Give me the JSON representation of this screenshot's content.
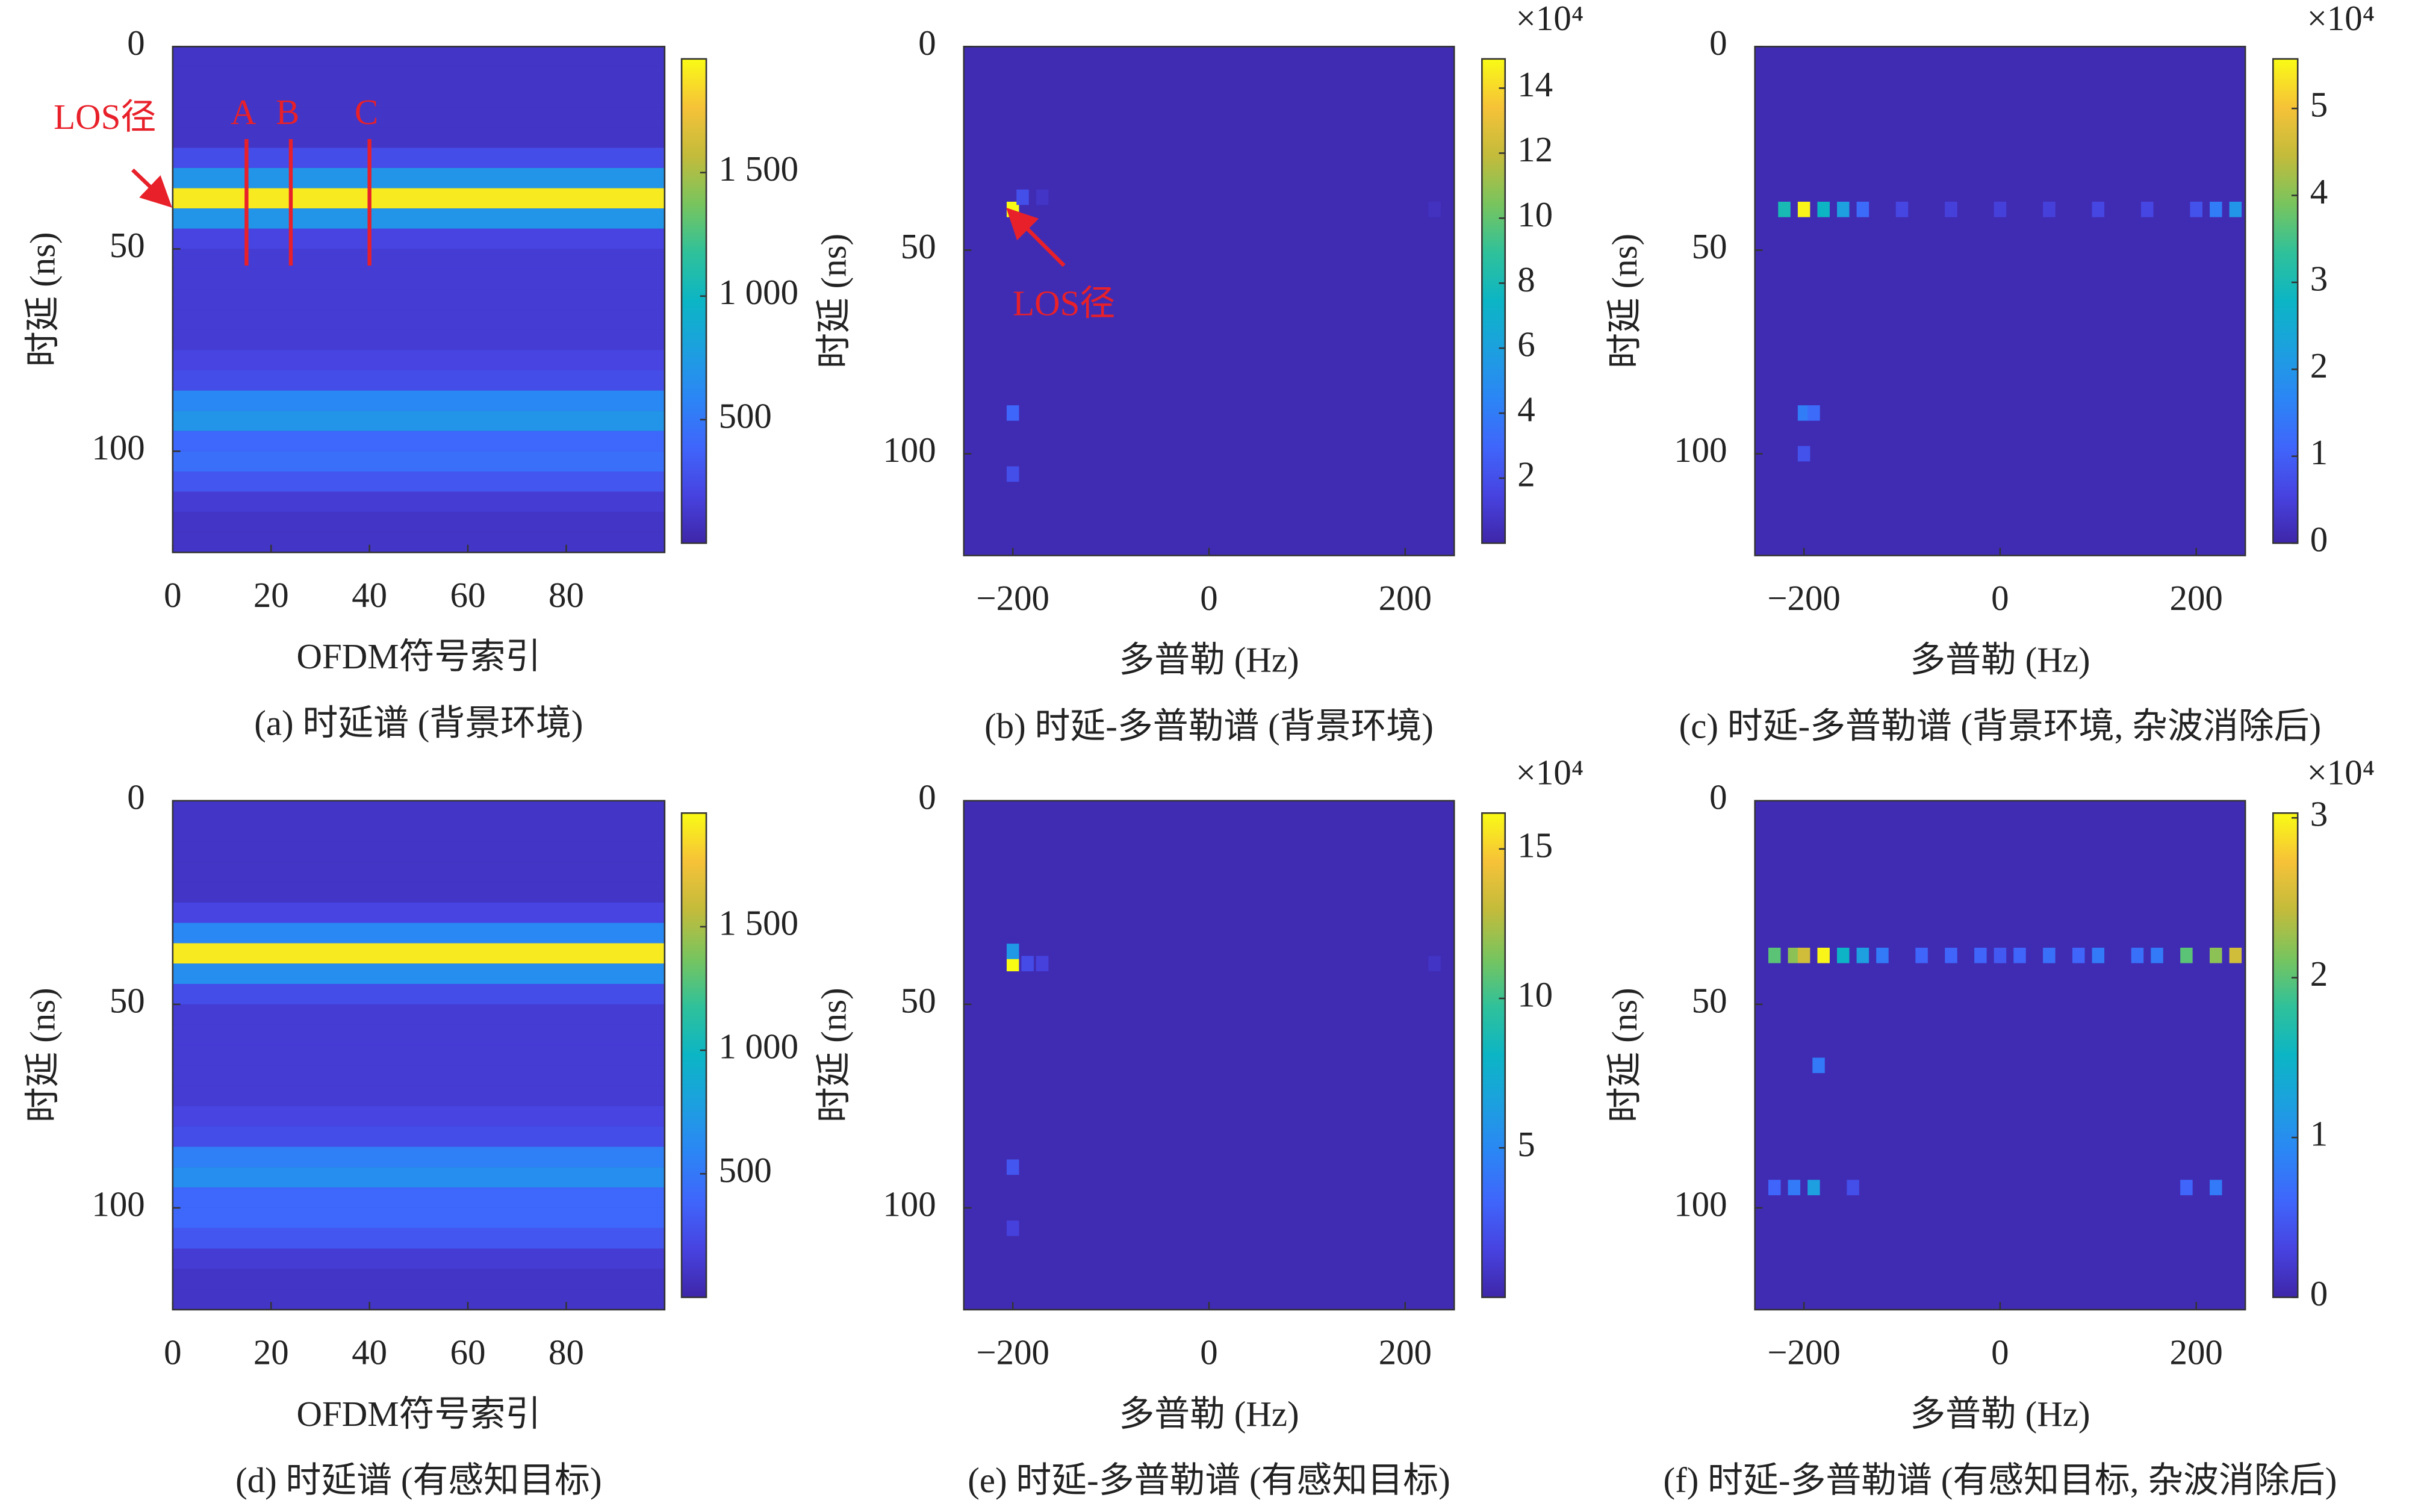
{
  "chart_data": [
    {
      "type": "heatmap",
      "caption": "(a) 时延谱 (背景环境)",
      "xlabel": "OFDM符号索引",
      "ylabel": "时延 (ns)",
      "xlim": [
        0,
        100
      ],
      "xticks": [
        0,
        20,
        40,
        60,
        80
      ],
      "ylim": [
        0,
        125
      ],
      "yticks": [
        0,
        50,
        100
      ],
      "y_reversed": true,
      "ybins": [
        0,
        5,
        10,
        15,
        20,
        25,
        30,
        35,
        40,
        45,
        50,
        55,
        60,
        65,
        70,
        75,
        80,
        85,
        90,
        95,
        100,
        105,
        110,
        115,
        120,
        125
      ],
      "values": [
        100,
        100,
        100,
        100,
        100,
        250,
        700,
        1900,
        700,
        200,
        150,
        150,
        150,
        150,
        150,
        200,
        250,
        600,
        700,
        400,
        450,
        300,
        150,
        100,
        100
      ],
      "clim": [
        0,
        1960
      ],
      "cticks": [
        {
          "value": 500,
          "label": "500"
        },
        {
          "value": 1000,
          "label": "1 000"
        },
        {
          "value": 1500,
          "label": "1 500"
        }
      ],
      "annotation": "LOS径",
      "lines": [
        {
          "label": "A",
          "x": 15
        },
        {
          "label": "B",
          "x": 24
        },
        {
          "label": "C",
          "x": 40
        }
      ],
      "annotation_color": "#e8202a"
    },
    {
      "type": "heatmap_points",
      "caption": "(b) 时延-多普勒谱 (背景环境)",
      "xlabel": "多普勒 (Hz)",
      "ylabel": "时延 (ns)",
      "xlim": [
        -250,
        250
      ],
      "xticks": [
        {
          "value": -200,
          "label": "−200"
        },
        0,
        200
      ],
      "ylim": [
        0,
        125
      ],
      "yticks": [
        0,
        50,
        100
      ],
      "y_reversed": true,
      "x": [
        -200,
        -190,
        -170,
        -200,
        -200,
        230
      ],
      "y": [
        40,
        37,
        37,
        90,
        105,
        40
      ],
      "values": [
        149000,
        20000,
        8000,
        30000,
        20000,
        6000
      ],
      "clim": [
        0,
        149000
      ],
      "cmultiplier": "×10⁴",
      "cticks": [
        {
          "value": 20000,
          "label": "2"
        },
        {
          "value": 40000,
          "label": "4"
        },
        {
          "value": 60000,
          "label": "6"
        },
        {
          "value": 80000,
          "label": "8"
        },
        {
          "value": 100000,
          "label": "10"
        },
        {
          "value": 120000,
          "label": "12"
        },
        {
          "value": 140000,
          "label": "14"
        }
      ],
      "annotation": "LOS径",
      "annotation_color": "#e8202a"
    },
    {
      "type": "heatmap_points",
      "caption": "(c) 时延-多普勒谱 (背景环境, 杂波消除后)",
      "xlabel": "多普勒 (Hz)",
      "ylabel": "时延 (ns)",
      "xlim": [
        -250,
        250
      ],
      "xticks": [
        {
          "value": -200,
          "label": "−200"
        },
        0,
        200
      ],
      "ylim": [
        0,
        125
      ],
      "yticks": [
        0,
        50,
        100
      ],
      "y_reversed": true,
      "x": [
        -220,
        -200,
        -180,
        -160,
        -140,
        -100,
        -50,
        0,
        50,
        100,
        150,
        200,
        220,
        240,
        -200,
        -190,
        -200
      ],
      "y": [
        40,
        40,
        40,
        40,
        40,
        40,
        40,
        40,
        40,
        40,
        40,
        40,
        40,
        40,
        90,
        90,
        100
      ],
      "values": [
        30000,
        55000,
        28000,
        22000,
        12000,
        6000,
        5000,
        5000,
        5000,
        6000,
        6000,
        8000,
        15000,
        20000,
        15000,
        12000,
        8000
      ],
      "clim": [
        0,
        55700
      ],
      "cmultiplier": "×10⁴",
      "cticks": [
        0,
        {
          "value": 10000,
          "label": "1"
        },
        {
          "value": 20000,
          "label": "2"
        },
        {
          "value": 30000,
          "label": "3"
        },
        {
          "value": 40000,
          "label": "4"
        },
        {
          "value": 50000,
          "label": "5"
        }
      ]
    },
    {
      "type": "heatmap",
      "caption": "(d) 时延谱 (有感知目标)",
      "xlabel": "OFDM符号索引",
      "ylabel": "时延 (ns)",
      "xlim": [
        0,
        100
      ],
      "xticks": [
        0,
        20,
        40,
        60,
        80
      ],
      "ylim": [
        0,
        125
      ],
      "yticks": [
        0,
        50,
        100
      ],
      "y_reversed": true,
      "ybins": [
        0,
        5,
        10,
        15,
        20,
        25,
        30,
        35,
        40,
        45,
        50,
        55,
        60,
        65,
        70,
        75,
        80,
        85,
        90,
        95,
        100,
        105,
        110,
        115,
        120,
        125
      ],
      "values": [
        100,
        100,
        100,
        100,
        100,
        200,
        600,
        1900,
        650,
        250,
        150,
        150,
        150,
        150,
        150,
        200,
        250,
        550,
        650,
        400,
        400,
        300,
        150,
        100,
        100
      ],
      "clim": [
        0,
        1960
      ],
      "cticks": [
        {
          "value": 500,
          "label": "500"
        },
        {
          "value": 1000,
          "label": "1 000"
        },
        {
          "value": 1500,
          "label": "1 500"
        }
      ]
    },
    {
      "type": "heatmap_points",
      "caption": "(e) 时延-多普勒谱 (有感知目标)",
      "xlabel": "多普勒 (Hz)",
      "ylabel": "时延 (ns)",
      "xlim": [
        -250,
        250
      ],
      "xticks": [
        {
          "value": -200,
          "label": "−200"
        },
        0,
        200
      ],
      "ylim": [
        0,
        125
      ],
      "yticks": [
        0,
        50,
        100
      ],
      "y_reversed": true,
      "x": [
        -200,
        -200,
        -185,
        -170,
        230,
        -200,
        -200
      ],
      "y": [
        40,
        37,
        40,
        40,
        40,
        90,
        105
      ],
      "values": [
        162000,
        60000,
        20000,
        15000,
        8000,
        25000,
        15000
      ],
      "clim": [
        0,
        162000
      ],
      "cmultiplier": "×10⁴",
      "cticks": [
        {
          "value": 50000,
          "label": "5"
        },
        {
          "value": 100000,
          "label": "10"
        },
        {
          "value": 150000,
          "label": "15"
        }
      ]
    },
    {
      "type": "heatmap_points",
      "caption": "(f) 时延-多普勒谱 (有感知目标, 杂波消除后)",
      "xlabel": "多普勒 (Hz)",
      "ylabel": "时延 (ns)",
      "xlim": [
        -250,
        250
      ],
      "xticks": [
        {
          "value": -200,
          "label": "−200"
        },
        0,
        200
      ],
      "ylim": [
        0,
        125
      ],
      "yticks": [
        0,
        50,
        100
      ],
      "y_reversed": true,
      "x": [
        -230,
        -210,
        -200,
        -180,
        -160,
        -140,
        -120,
        -80,
        -50,
        -20,
        0,
        20,
        50,
        80,
        100,
        140,
        160,
        190,
        220,
        240,
        -185,
        -230,
        -210,
        -190,
        -150,
        190,
        220
      ],
      "y": [
        38,
        38,
        38,
        38,
        38,
        38,
        38,
        38,
        38,
        38,
        38,
        38,
        38,
        38,
        38,
        38,
        38,
        38,
        38,
        38,
        65,
        95,
        95,
        95,
        95,
        95,
        95
      ],
      "values": [
        20000,
        22000,
        25000,
        30000,
        15000,
        12000,
        8000,
        6000,
        6000,
        6000,
        5000,
        6000,
        7000,
        6000,
        8000,
        7000,
        8000,
        20000,
        22000,
        25000,
        8000,
        6000,
        8000,
        12000,
        4000,
        6000,
        8000
      ],
      "clim": [
        0,
        30300
      ],
      "cmultiplier": "×10⁴",
      "cticks": [
        0,
        {
          "value": 10000,
          "label": "1"
        },
        {
          "value": 20000,
          "label": "2"
        },
        {
          "value": 30000,
          "label": "3"
        }
      ]
    }
  ]
}
